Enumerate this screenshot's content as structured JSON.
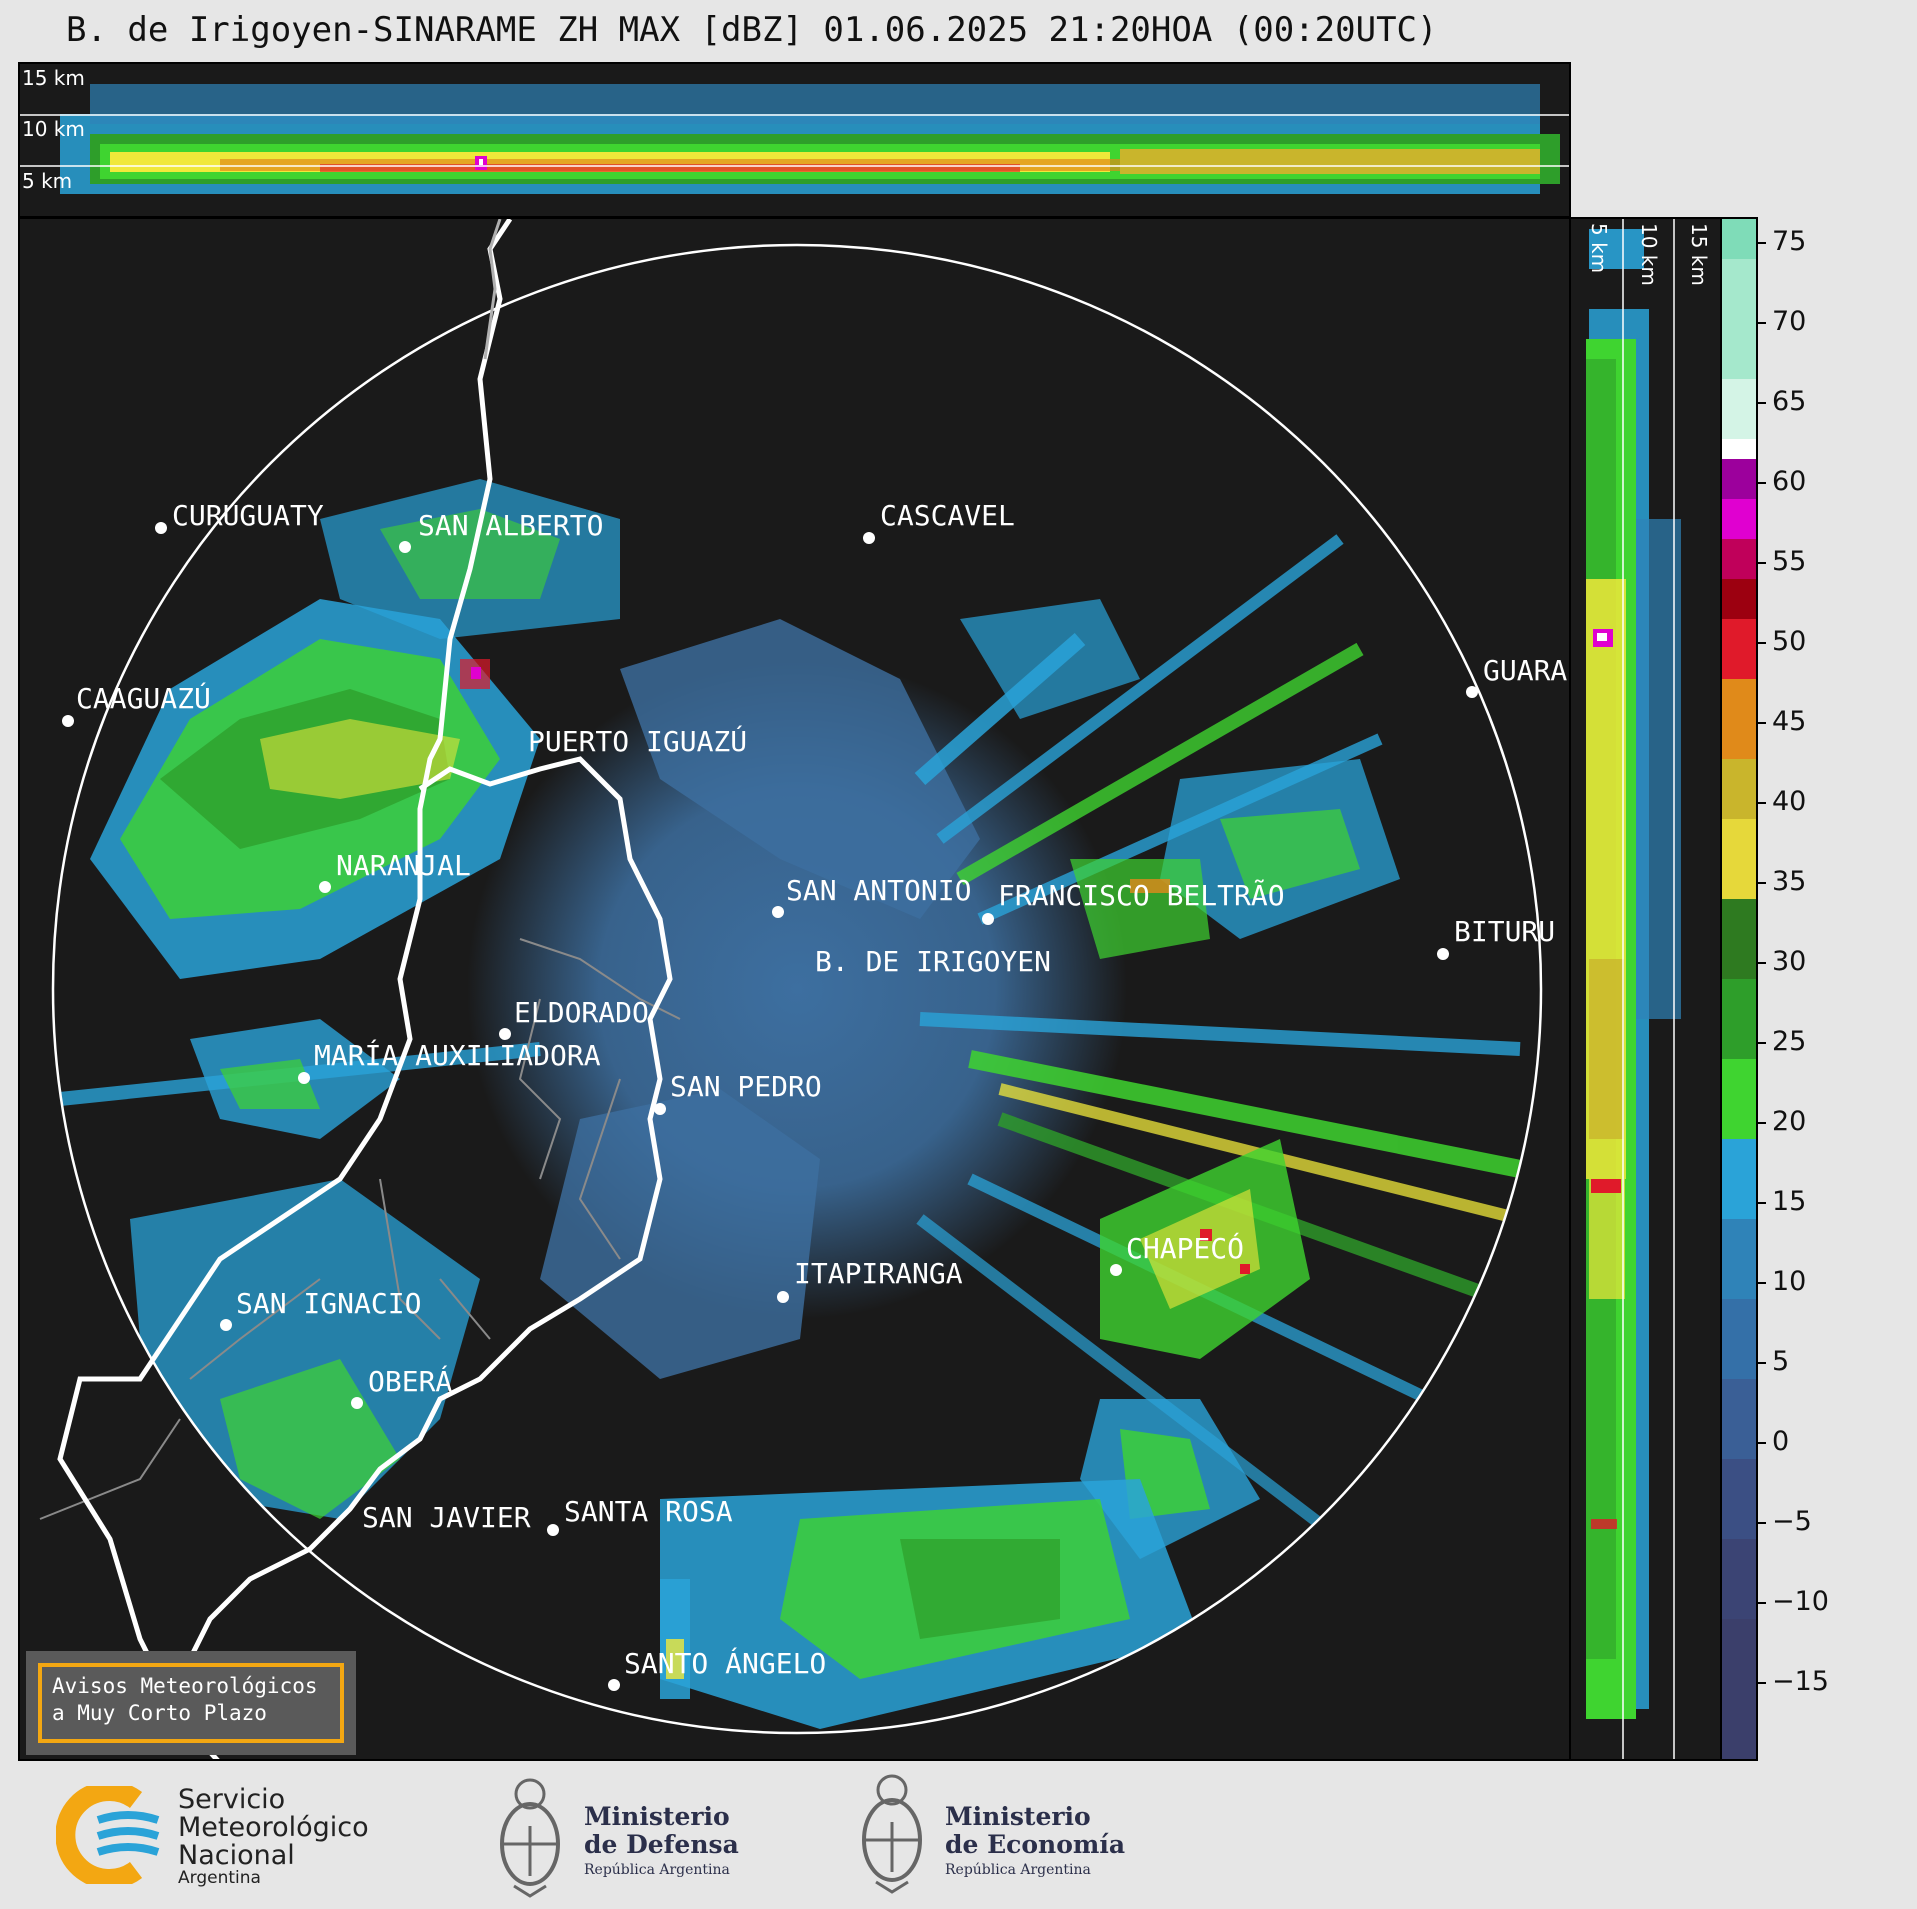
{
  "title": "B. de Irigoyen-SINARAME ZH MAX [dBZ] 01.06.2025 21:20HOA (00:20UTC)",
  "top_panel": {
    "km_labels": [
      "15 km",
      "10 km",
      "5 km"
    ]
  },
  "side_panel": {
    "km_labels": [
      "5 km",
      "10 km",
      "15 km"
    ]
  },
  "colorbar": {
    "unit": "dBZ",
    "ticks": [
      "75",
      "70",
      "65",
      "60",
      "55",
      "50",
      "45",
      "40",
      "35",
      "30",
      "25",
      "20",
      "15",
      "10",
      "5",
      "0",
      "−5",
      "−10",
      "−15"
    ],
    "colors": {
      "band_-20": "#3b3f6b",
      "band_-5": "#3a5f96",
      "band_10": "#2f83b8",
      "band_15": "#2aa3d8",
      "band_20": "#3fd430",
      "band_25": "#2e9e2a",
      "band_30": "#f0e83a",
      "band_35": "#c9b52c",
      "band_40": "#e08a1a",
      "band_45": "#e01a2a",
      "band_50": "#9c0010",
      "band_55": "#e000d0",
      "band_60": "#ffffff",
      "band_65": "#bdf0dc",
      "band_75": "#7fdcb8"
    }
  },
  "map": {
    "cities": [
      {
        "name": "CURUGUATY"
      },
      {
        "name": "SAN ALBERTO"
      },
      {
        "name": "CASCAVEL"
      },
      {
        "name": "CAAGUAZÚ"
      },
      {
        "name": "GUARA"
      },
      {
        "name": "PUERTO IGUAZÚ"
      },
      {
        "name": "NARANJAL"
      },
      {
        "name": "SAN ANTONIO"
      },
      {
        "name": "FRANCISCO BELTRÃO"
      },
      {
        "name": "BITURU"
      },
      {
        "name": "B. DE IRIGOYEN"
      },
      {
        "name": "ELDORADO"
      },
      {
        "name": "MARÍA AUXILIADORA"
      },
      {
        "name": "SAN PEDRO"
      },
      {
        "name": "CHAPECÓ"
      },
      {
        "name": "ITAPIRANGA"
      },
      {
        "name": "SAN IGNACIO"
      },
      {
        "name": "OBERÁ"
      },
      {
        "name": "SAN JAVIER"
      },
      {
        "name": "SANTA ROSA"
      },
      {
        "name": "SANTO ÁNGELO"
      }
    ],
    "colors": {
      "background": "#1a1a1a",
      "echo_base": "#3d6fa0",
      "border_main": "#ffffff",
      "border_secondary": "#8a8a8a"
    }
  },
  "aviso": {
    "line1": "Avisos Meteorológicos",
    "line2": "a Muy Corto Plazo"
  },
  "footer": {
    "smn": {
      "line1": "Servicio",
      "line2": "Meteorológico",
      "line3": "Nacional",
      "line4": "Argentina"
    },
    "defensa": {
      "line1": "Ministerio",
      "line2": "de Defensa",
      "line3": "República Argentina"
    },
    "economia": {
      "line1": "Ministerio",
      "line2": "de Economía",
      "line3": "República Argentina"
    }
  }
}
